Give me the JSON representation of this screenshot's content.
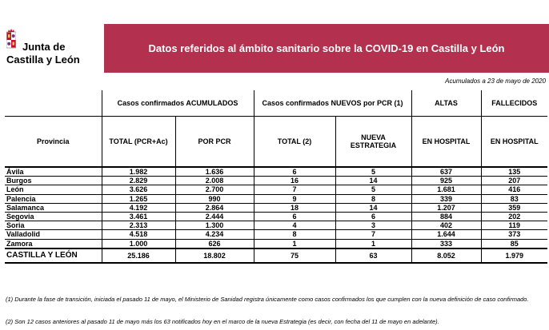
{
  "logo": {
    "line1": "Junta de",
    "line2": "Castilla y León",
    "colors": {
      "castle": "#c8102e",
      "lion": "#7b2d8e"
    }
  },
  "banner": {
    "title": "Datos referidos al ámbito sanitario sobre la COVID-19 en Castilla y León",
    "color": "#b3304f"
  },
  "date_note": "Acumulados a 23 de mayo de 2020",
  "table": {
    "group_headers": {
      "accumulated": "Casos confirmados ACUMULADOS",
      "new_pcr": "Casos confirmados NUEVOS por PCR (1)",
      "altas": "ALTAS",
      "fallecidos": "FALLECIDOS"
    },
    "columns": {
      "provincia": "Provincia",
      "total_pcr_ac": "TOTAL (PCR+Ac)",
      "por_pcr": "POR PCR",
      "total_2": "TOTAL (2)",
      "nueva_estrategia": "NUEVA ESTRATEGIA",
      "altas_hospital": "EN HOSPITAL",
      "fallecidos_hospital": "EN HOSPITAL"
    },
    "rows": [
      {
        "provincia": "Ávila",
        "total_pcr_ac": "1.982",
        "por_pcr": "1.636",
        "total_2": "6",
        "nueva": "5",
        "altas": "637",
        "fallecidos": "135"
      },
      {
        "provincia": "Burgos",
        "total_pcr_ac": "2.829",
        "por_pcr": "2.008",
        "total_2": "16",
        "nueva": "14",
        "altas": "925",
        "fallecidos": "207"
      },
      {
        "provincia": "León",
        "total_pcr_ac": "3.626",
        "por_pcr": "2.700",
        "total_2": "7",
        "nueva": "5",
        "altas": "1.681",
        "fallecidos": "416"
      },
      {
        "provincia": "Palencia",
        "total_pcr_ac": "1.265",
        "por_pcr": "990",
        "total_2": "9",
        "nueva": "8",
        "altas": "339",
        "fallecidos": "83"
      },
      {
        "provincia": "Salamanca",
        "total_pcr_ac": "4.192",
        "por_pcr": "2.864",
        "total_2": "18",
        "nueva": "14",
        "altas": "1.207",
        "fallecidos": "359"
      },
      {
        "provincia": "Segovia",
        "total_pcr_ac": "3.461",
        "por_pcr": "2.444",
        "total_2": "6",
        "nueva": "6",
        "altas": "884",
        "fallecidos": "202"
      },
      {
        "provincia": "Soria",
        "total_pcr_ac": "2.313",
        "por_pcr": "1.300",
        "total_2": "4",
        "nueva": "3",
        "altas": "402",
        "fallecidos": "119"
      },
      {
        "provincia": "Valladolid",
        "total_pcr_ac": "4.518",
        "por_pcr": "4.234",
        "total_2": "8",
        "nueva": "7",
        "altas": "1.644",
        "fallecidos": "373"
      },
      {
        "provincia": "Zamora",
        "total_pcr_ac": "1.000",
        "por_pcr": "626",
        "total_2": "1",
        "nueva": "1",
        "altas": "333",
        "fallecidos": "85"
      }
    ],
    "total_row": {
      "provincia": "CASTILLA Y LEÓN",
      "total_pcr_ac": "25.186",
      "por_pcr": "18.802",
      "total_2": "75",
      "nueva": "63",
      "altas": "8.052",
      "fallecidos": "1.979"
    }
  },
  "footnotes": {
    "note1": "(1) Durante la fase de transición, iniciada el pasado 11 de mayo, el Ministerio de Sanidad registra únicamente como casos confirmados los que cumplen con la nueva definición de caso confirmado.",
    "note2": "(2) Son 12 casos anteriores al pasado 11 de mayo más los 63 notificados hoy en el marco de la nueva Estrategia (es decir, con fecha del 11 de mayo en adelante)."
  }
}
